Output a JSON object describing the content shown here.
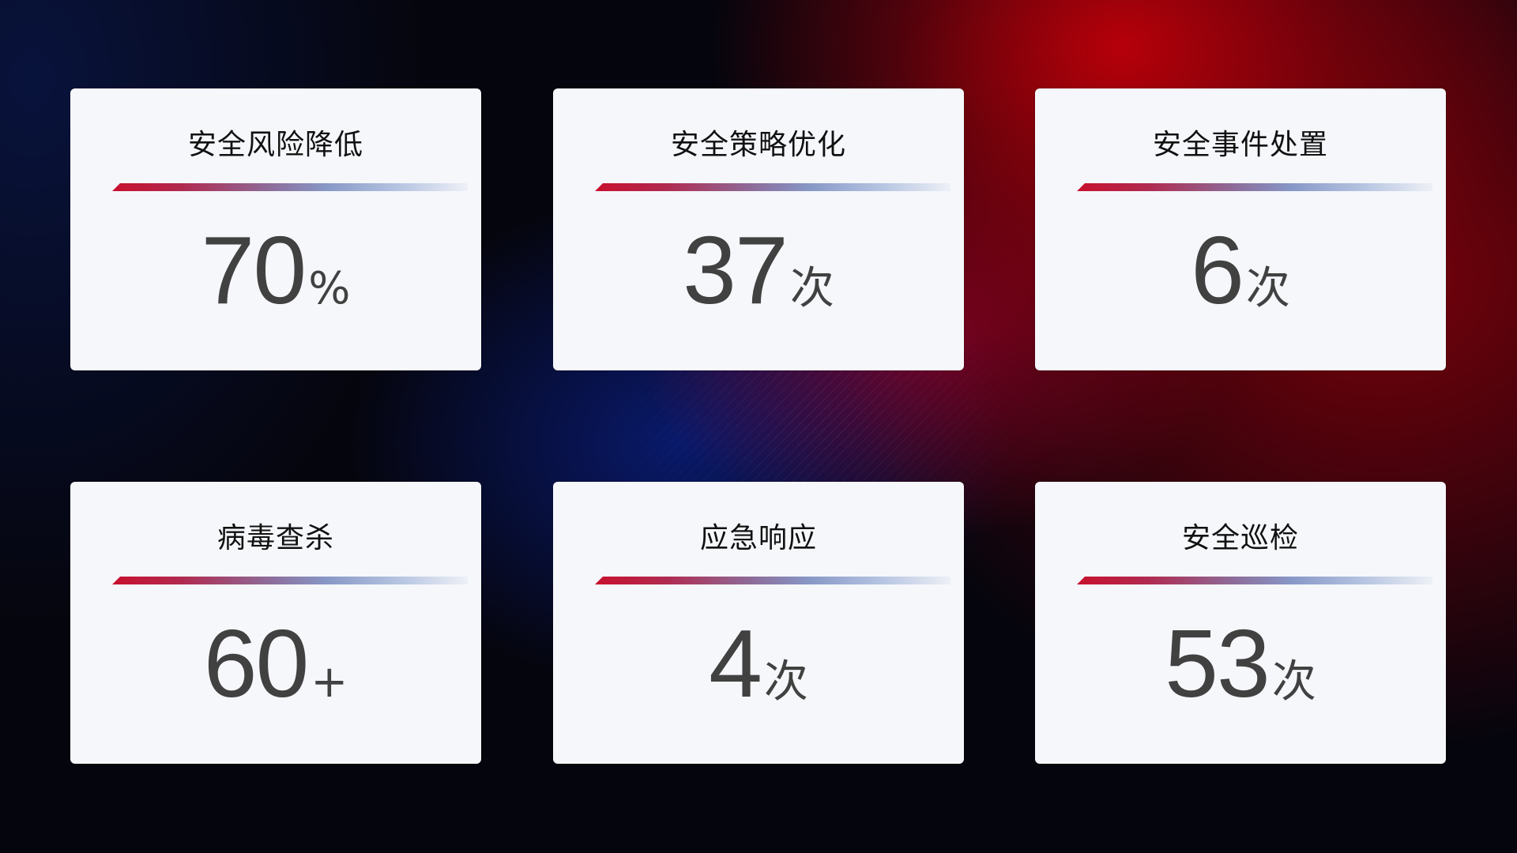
{
  "cards": [
    {
      "title": "安全风险降低",
      "value": "70",
      "unit": "%"
    },
    {
      "title": "安全策略优化",
      "value": "37",
      "unit": "次"
    },
    {
      "title": "安全事件处置",
      "value": "6",
      "unit": "次"
    },
    {
      "title": "病毒查杀",
      "value": "60",
      "unit": "+"
    },
    {
      "title": "应急响应",
      "value": "4",
      "unit": "次"
    },
    {
      "title": "安全巡检",
      "value": "53",
      "unit": "次"
    }
  ],
  "colors": {
    "accent_red": "#c8102e",
    "accent_blue": "#8797c6",
    "card_bg": "#f5f7fb",
    "value_text": "#414141"
  }
}
